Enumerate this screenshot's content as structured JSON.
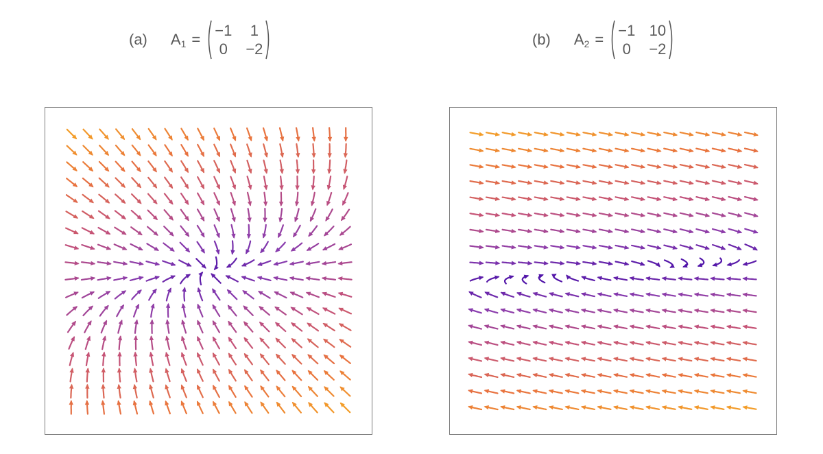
{
  "figure": {
    "panels": [
      {
        "label": "(a)",
        "matrix_name": "A",
        "matrix_subscript": "1",
        "equals": "=",
        "matrix": [
          [
            "−1",
            "1"
          ],
          [
            "0",
            "−2"
          ]
        ]
      },
      {
        "label": "(b)",
        "matrix_name": "A",
        "matrix_subscript": "2",
        "equals": "=",
        "matrix": [
          [
            "−1",
            "10"
          ],
          [
            "0",
            "−2"
          ]
        ]
      }
    ]
  },
  "stream_plots": [
    {
      "matrix": [
        [
          -1,
          1
        ],
        [
          0,
          -2
        ]
      ],
      "domain": [
        -2,
        2
      ],
      "colormap": [
        "#4a10a8",
        "#8a3cad",
        "#c3527a",
        "#e9733e",
        "#f5a623"
      ]
    },
    {
      "matrix": [
        [
          -1,
          10
        ],
        [
          0,
          -2
        ]
      ],
      "domain": [
        -2,
        2
      ],
      "colormap": [
        "#4a10a8",
        "#8a3cad",
        "#c3527a",
        "#e9733e",
        "#f5a623"
      ]
    }
  ]
}
